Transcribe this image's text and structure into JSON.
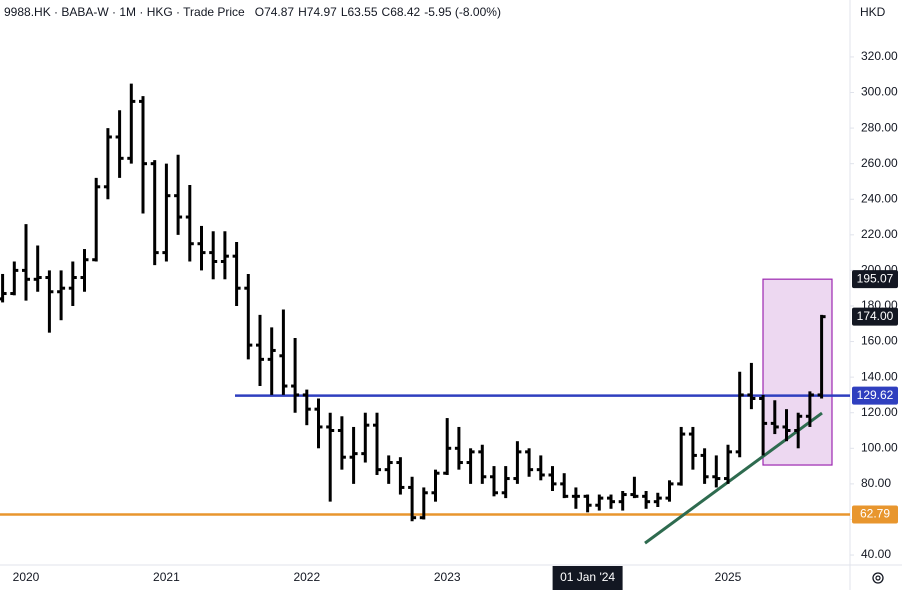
{
  "chart_data": {
    "type": "ohlc",
    "title": "9988.HK · BABA-W · 1M · HKG · Trade Price",
    "readout": [
      {
        "label": "O",
        "value": 74.87
      },
      {
        "label": "H",
        "value": 74.97
      },
      {
        "label": "L",
        "value": 63.55
      },
      {
        "label": "C",
        "value": 68.42
      }
    ],
    "change": "-5.95 (-8.00%)",
    "currency": "HKD",
    "color": "#000000",
    "categories": [
      null,
      null,
      "2020",
      null,
      null,
      null,
      null,
      null,
      null,
      null,
      null,
      null,
      null,
      null,
      "2021",
      null,
      null,
      null,
      null,
      null,
      null,
      null,
      null,
      null,
      null,
      null,
      "2022",
      null,
      null,
      null,
      null,
      null,
      null,
      null,
      null,
      null,
      null,
      null,
      "2023",
      null,
      null,
      null,
      null,
      null,
      null,
      null,
      null,
      null,
      null,
      null,
      "01 Jan '24",
      null,
      null,
      null,
      null,
      null,
      null,
      null,
      null,
      null,
      null,
      null,
      "2025",
      null,
      null,
      null,
      null,
      null,
      null,
      null,
      null
    ],
    "open": [
      184,
      187,
      200,
      195,
      196,
      188,
      190,
      196,
      206,
      247,
      275,
      263,
      295,
      260,
      210,
      242,
      230,
      215,
      210,
      205,
      208,
      190,
      158,
      150,
      152,
      135,
      130,
      122,
      112,
      110,
      95,
      97,
      113,
      88,
      92,
      78,
      61,
      75,
      86,
      100,
      92,
      98,
      84,
      75,
      83,
      98,
      88,
      85,
      80,
      73,
      73,
      68,
      72,
      70,
      74,
      73,
      70,
      72,
      80,
      108,
      96,
      84,
      83,
      98,
      130,
      128,
      114,
      112,
      110,
      118,
      130
    ],
    "high": [
      198,
      205,
      226,
      214,
      200,
      200,
      205,
      212,
      252,
      280,
      290,
      305,
      298,
      262,
      260,
      265,
      248,
      225,
      222,
      222,
      216,
      198,
      175,
      168,
      178,
      162,
      133,
      128,
      120,
      118,
      112,
      120,
      120,
      96,
      95,
      84,
      78,
      88,
      117,
      112,
      100,
      102,
      90,
      90,
      104,
      100,
      96,
      90,
      86,
      78,
      74,
      74,
      74,
      76,
      84,
      76,
      75,
      82,
      112,
      112,
      100,
      96,
      102,
      143,
      148,
      130,
      127,
      122,
      120,
      132,
      175
    ],
    "low": [
      182,
      186,
      183,
      188,
      165,
      172,
      180,
      188,
      205,
      240,
      252,
      260,
      232,
      203,
      205,
      220,
      205,
      200,
      195,
      195,
      180,
      150,
      135,
      130,
      130,
      120,
      113,
      100,
      70,
      88,
      80,
      92,
      85,
      80,
      74,
      59,
      60,
      70,
      85,
      88,
      80,
      80,
      73,
      72,
      80,
      84,
      82,
      76,
      72,
      66,
      64,
      65,
      66,
      65,
      72,
      66,
      67,
      70,
      79,
      88,
      80,
      78,
      80,
      95,
      122,
      96,
      108,
      104,
      100,
      112,
      128
    ],
    "close": [
      187,
      200,
      195,
      196,
      188,
      190,
      196,
      206,
      247,
      275,
      263,
      295,
      260,
      210,
      242,
      230,
      215,
      210,
      205,
      208,
      190,
      158,
      150,
      155,
      135,
      130,
      122,
      112,
      110,
      95,
      97,
      113,
      88,
      92,
      78,
      61,
      75,
      86,
      100,
      92,
      98,
      84,
      75,
      83,
      98,
      88,
      85,
      80,
      73,
      73,
      68,
      72,
      70,
      74,
      73,
      70,
      72,
      80,
      108,
      96,
      84,
      83,
      98,
      130,
      128,
      114,
      112,
      110,
      118,
      130,
      174
    ],
    "ylim": [
      34.4,
      352
    ],
    "yticks": [
      {
        "value": 40,
        "label": "40.00"
      },
      {
        "value": 60,
        "label": "60.00"
      },
      {
        "value": 80,
        "label": "80.00"
      },
      {
        "value": 100,
        "label": "100.00"
      },
      {
        "value": 120,
        "label": "120.00"
      },
      {
        "value": 140,
        "label": "140.00"
      },
      {
        "value": 160,
        "label": "160.00"
      },
      {
        "value": 180,
        "label": "180.00"
      },
      {
        "value": 200,
        "label": "200.00"
      },
      {
        "value": 220,
        "label": "220.00"
      },
      {
        "value": 240,
        "label": "240.00"
      },
      {
        "value": 260,
        "label": "260.00"
      },
      {
        "value": 280,
        "label": "280.00"
      },
      {
        "value": 300,
        "label": "300.00"
      },
      {
        "value": 320,
        "label": "320.00"
      }
    ],
    "hlines": [
      {
        "value": 129.62,
        "label": "129.62",
        "color": "#2f3fbf"
      },
      {
        "value": 62.79,
        "label": "62.79",
        "color": "#e8962e"
      }
    ],
    "box": {
      "top": 195.07,
      "bottom": 90.6,
      "label": "195.07",
      "color": "#9c27b0"
    },
    "trendline": {
      "values": [
        46.7,
        119.8
      ],
      "color": "#2e6b4f"
    },
    "last_price": {
      "value": 174,
      "label": "174.00"
    }
  }
}
